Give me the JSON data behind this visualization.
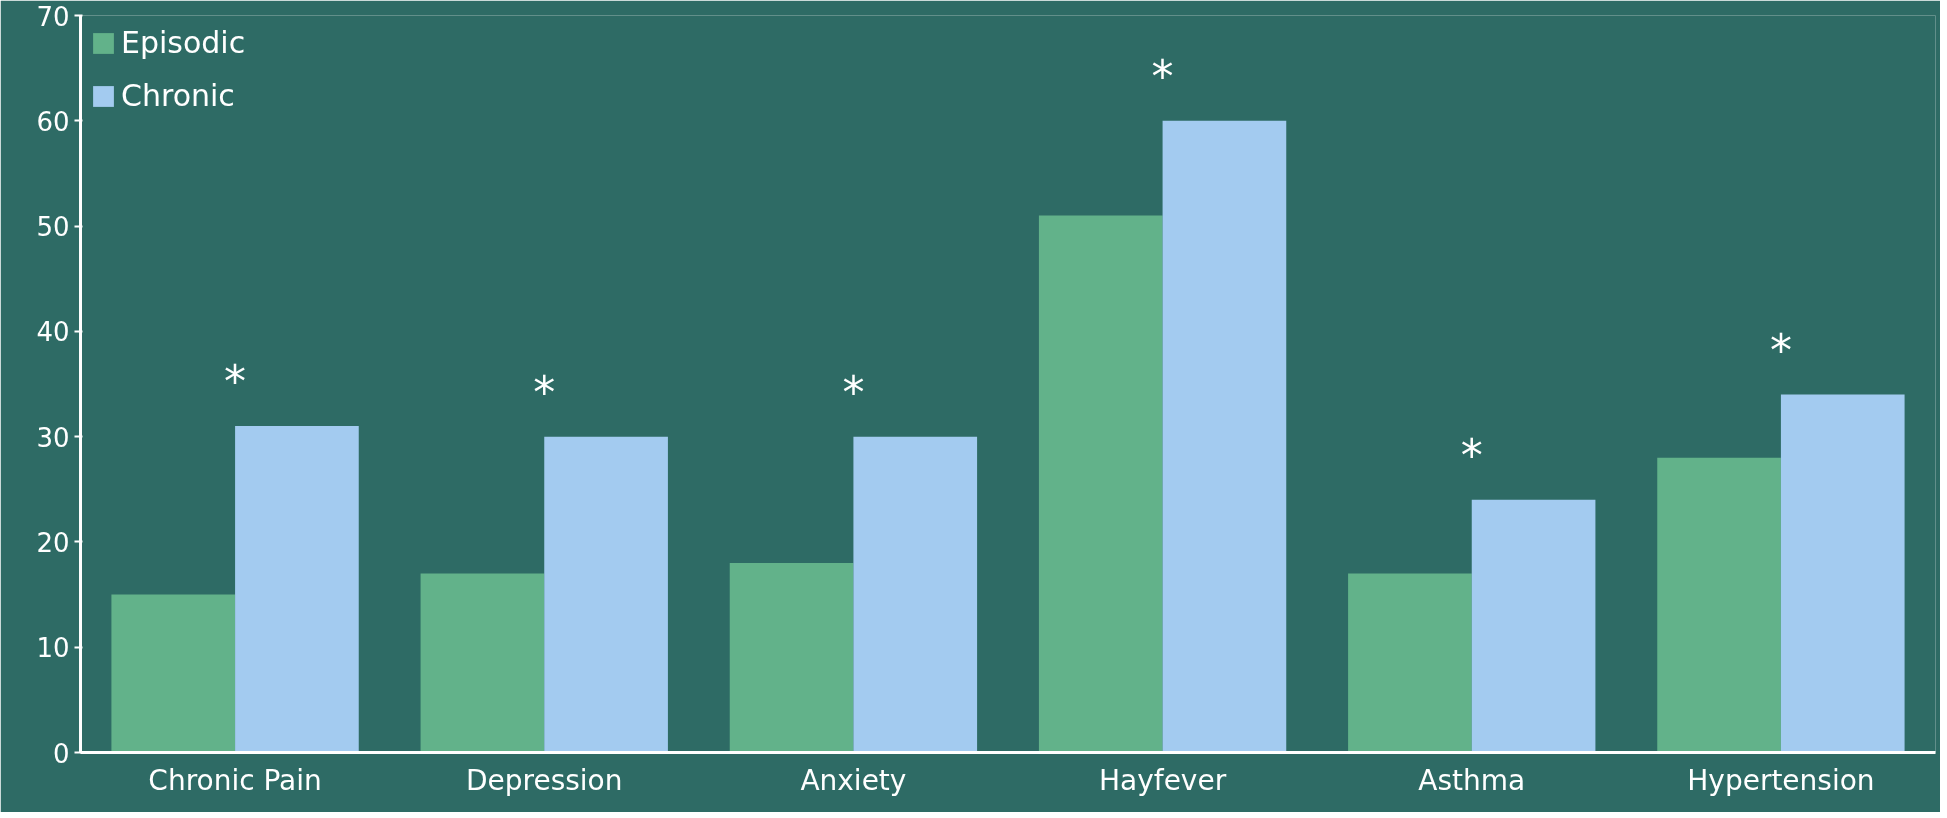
{
  "chart_data": {
    "type": "bar",
    "categories": [
      "Chronic Pain",
      "Depression",
      "Anxiety",
      "Hayfever",
      "Asthma",
      "Hypertension"
    ],
    "series": [
      {
        "name": "Episodic",
        "color": "#62b28a",
        "values": [
          15,
          17,
          18,
          51,
          17,
          28
        ]
      },
      {
        "name": "Chronic",
        "color": "#a3cbf0",
        "values": [
          31,
          30,
          30,
          60,
          24,
          34
        ]
      }
    ],
    "ylim": [
      0,
      70
    ],
    "yticks": [
      0,
      10,
      20,
      30,
      40,
      50,
      60,
      70
    ],
    "grid": false,
    "legend": "top left",
    "annotations": [
      "*",
      "*",
      "*",
      "*",
      "*",
      "*"
    ]
  }
}
